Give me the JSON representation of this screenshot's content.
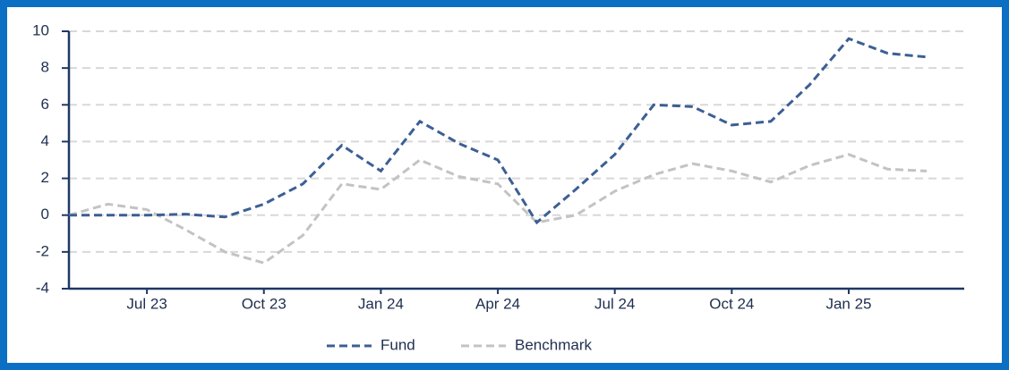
{
  "chart_data": {
    "type": "line",
    "categories": [
      null,
      null,
      "Jul 23",
      null,
      null,
      "Oct 23",
      null,
      null,
      "Jan 24",
      null,
      null,
      "Apr 24",
      null,
      null,
      "Jul 24",
      null,
      null,
      "Oct 24",
      null,
      null,
      "Jan 25",
      null,
      null
    ],
    "series": [
      {
        "name": "Fund",
        "color": "#3c5f94",
        "values": [
          0,
          0,
          0,
          0.05,
          -0.1,
          0.6,
          1.7,
          3.8,
          2.4,
          5.1,
          3.9,
          3.0,
          -0.4,
          1.4,
          3.3,
          6.0,
          5.9,
          4.9,
          5.1,
          7.1,
          9.6,
          8.8,
          8.6
        ]
      },
      {
        "name": "Benchmark",
        "color": "#c3c3c3",
        "values": [
          0,
          0.6,
          0.3,
          -0.8,
          -2.0,
          -2.6,
          -1.1,
          1.7,
          1.4,
          3.0,
          2.1,
          1.7,
          -0.4,
          0.0,
          1.3,
          2.2,
          2.8,
          2.4,
          1.8,
          2.7,
          3.3,
          2.5,
          2.4
        ]
      }
    ],
    "ylim": [
      -4,
      10
    ],
    "yticks": [
      -4,
      -2,
      0,
      2,
      4,
      6,
      8,
      10
    ],
    "grid": true,
    "legend": "bottom"
  }
}
